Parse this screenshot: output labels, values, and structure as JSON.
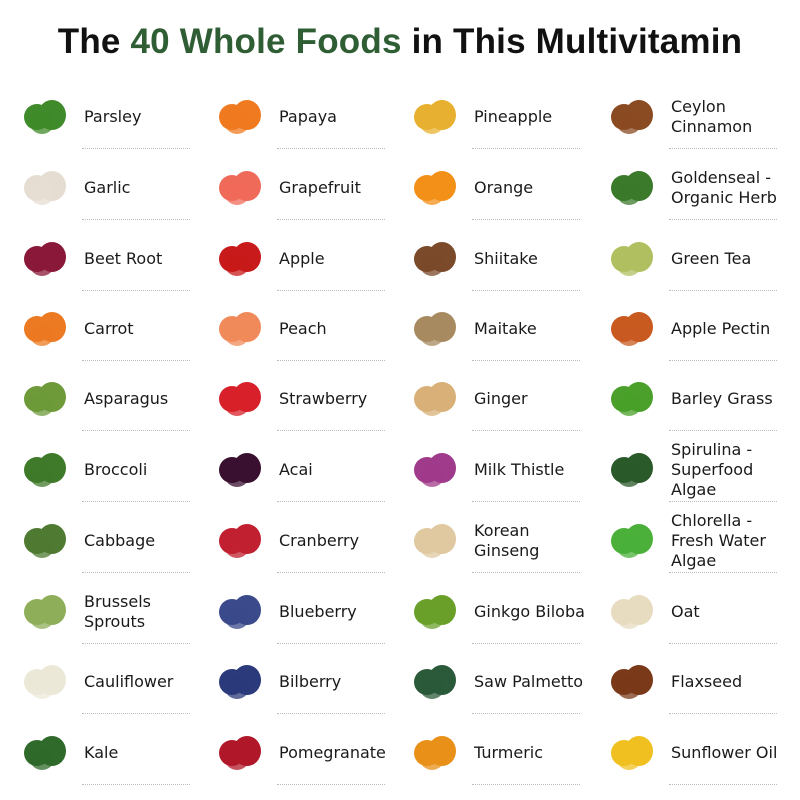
{
  "title": {
    "prefix": "The ",
    "highlight": "40 Whole Foods",
    "suffix": " in This Multivitamin",
    "highlight_color": "#2f5d34"
  },
  "columns": [
    [
      {
        "label": "Parsley",
        "icon": "parsley-icon",
        "color": "#3f8a2a"
      },
      {
        "label": "Garlic",
        "icon": "garlic-icon",
        "color": "#e6ddd2"
      },
      {
        "label": "Beet Root",
        "icon": "beet-root-icon",
        "color": "#8a1838"
      },
      {
        "label": "Carrot",
        "icon": "carrot-icon",
        "color": "#ec7a22"
      },
      {
        "label": "Asparagus",
        "icon": "asparagus-icon",
        "color": "#6e9a3a"
      },
      {
        "label": "Broccoli",
        "icon": "broccoli-icon",
        "color": "#3f7a2a"
      },
      {
        "label": "Cabbage",
        "icon": "cabbage-icon",
        "color": "#4f7a32"
      },
      {
        "label": "Brussels\nSprouts",
        "icon": "brussels-sprouts-icon",
        "color": "#8fae5a"
      },
      {
        "label": "Cauliflower",
        "icon": "cauliflower-icon",
        "color": "#ece8d8"
      },
      {
        "label": "Kale",
        "icon": "kale-icon",
        "color": "#2f6a2a"
      }
    ],
    [
      {
        "label": "Papaya",
        "icon": "papaya-icon",
        "color": "#f07a20"
      },
      {
        "label": "Grapefruit",
        "icon": "grapefruit-icon",
        "color": "#f06a5a"
      },
      {
        "label": "Apple",
        "icon": "apple-icon",
        "color": "#c81a1a"
      },
      {
        "label": "Peach",
        "icon": "peach-icon",
        "color": "#f08a5a"
      },
      {
        "label": "Strawberry",
        "icon": "strawberry-icon",
        "color": "#d8202a"
      },
      {
        "label": "Acai",
        "icon": "acai-icon",
        "color": "#3a1030"
      },
      {
        "label": "Cranberry",
        "icon": "cranberry-icon",
        "color": "#c02030"
      },
      {
        "label": "Blueberry",
        "icon": "blueberry-icon",
        "color": "#3a4a8a"
      },
      {
        "label": "Bilberry",
        "icon": "bilberry-icon",
        "color": "#2a3a7a"
      },
      {
        "label": "Pomegranate",
        "icon": "pomegranate-icon",
        "color": "#b0182a"
      }
    ],
    [
      {
        "label": "Pineapple",
        "icon": "pineapple-icon",
        "color": "#e8b030"
      },
      {
        "label": "Orange",
        "icon": "orange-icon",
        "color": "#f39018"
      },
      {
        "label": "Shiitake",
        "icon": "shiitake-icon",
        "color": "#7a4a2a"
      },
      {
        "label": "Maitake",
        "icon": "maitake-icon",
        "color": "#a88a60"
      },
      {
        "label": "Ginger",
        "icon": "ginger-icon",
        "color": "#d8b078"
      },
      {
        "label": "Milk Thistle",
        "icon": "milk-thistle-icon",
        "color": "#a03a8a"
      },
      {
        "label": "Korean\nGinseng",
        "icon": "korean-ginseng-icon",
        "color": "#e0c8a0"
      },
      {
        "label": "Ginkgo Biloba",
        "icon": "ginkgo-biloba-icon",
        "color": "#6aa02a"
      },
      {
        "label": "Saw Palmetto",
        "icon": "saw-palmetto-icon",
        "color": "#2a5a3a"
      },
      {
        "label": "Turmeric",
        "icon": "turmeric-icon",
        "color": "#e89018"
      }
    ],
    [
      {
        "label": "Ceylon\nCinnamon",
        "icon": "ceylon-cinnamon-icon",
        "color": "#8a4a22"
      },
      {
        "label": "Goldenseal -\nOrganic Herb",
        "icon": "goldenseal-icon",
        "color": "#3a7a2a"
      },
      {
        "label": "Green Tea",
        "icon": "green-tea-icon",
        "color": "#b0c060"
      },
      {
        "label": "Apple Pectin",
        "icon": "apple-pectin-icon",
        "color": "#c85a20"
      },
      {
        "label": "Barley Grass",
        "icon": "barley-grass-icon",
        "color": "#4aa02a"
      },
      {
        "label": "Spirulina -\nSuperfood\nAlgae",
        "icon": "spirulina-icon",
        "color": "#2a5a2a"
      },
      {
        "label": "Chlorella -\nFresh Water\nAlgae",
        "icon": "chlorella-icon",
        "color": "#4ab03a"
      },
      {
        "label": "Oat",
        "icon": "oat-icon",
        "color": "#e8dcc0"
      },
      {
        "label": "Flaxseed",
        "icon": "flaxseed-icon",
        "color": "#7a3a1a"
      },
      {
        "label": "Sunflower Oil",
        "icon": "sunflower-oil-icon",
        "color": "#f0c020"
      }
    ]
  ]
}
